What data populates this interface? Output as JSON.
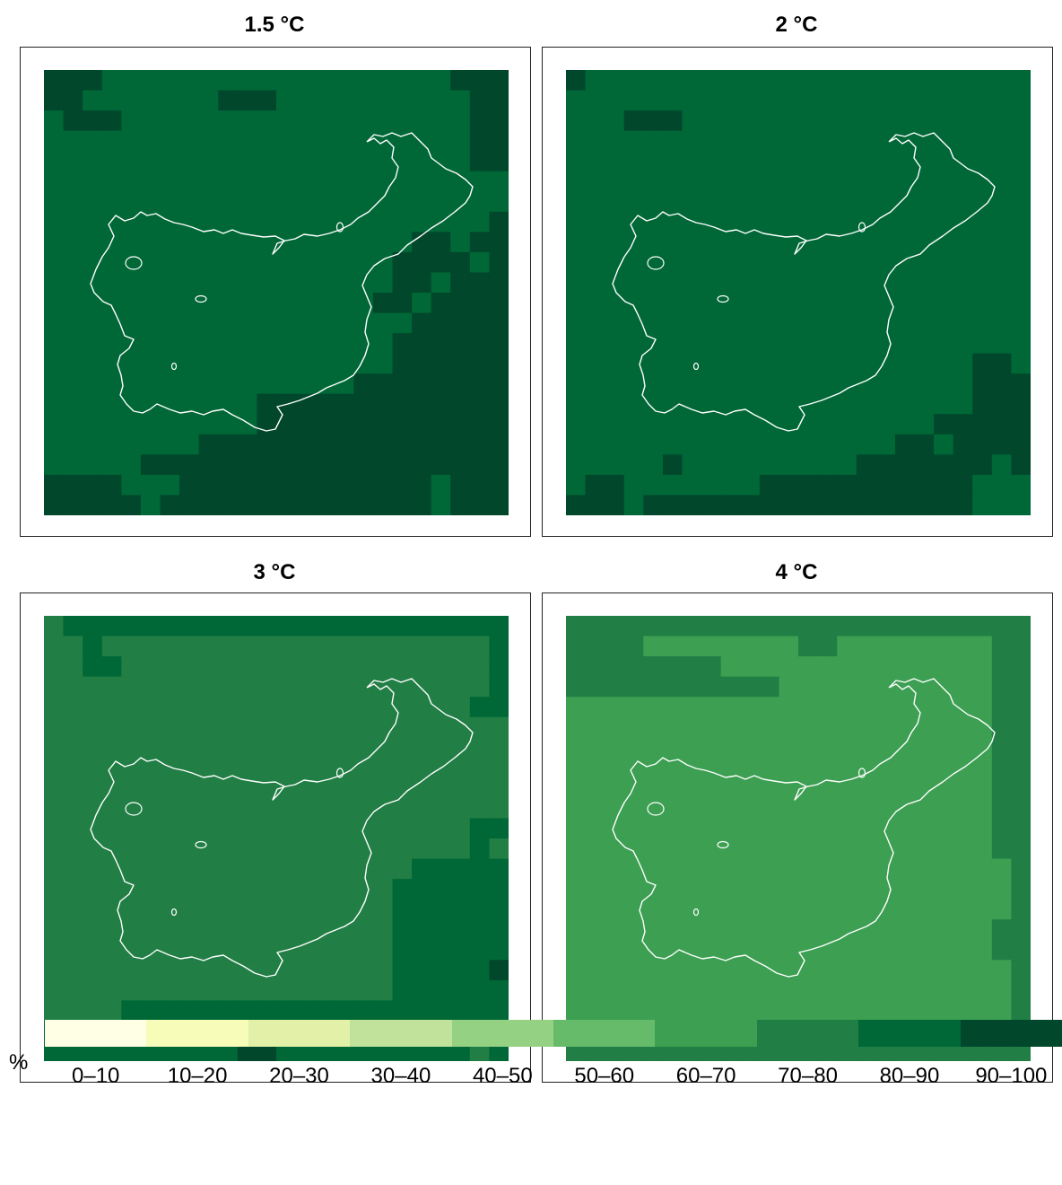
{
  "panels": [
    {
      "title": "1.5 °C",
      "grid": [
        "999888888888888888888999",
        "998888888999888888888899",
        "899988888888888888888899",
        "888888888888888888888899",
        "888888888888888888888899",
        "888888888888888888888888",
        "888888888888888888888888",
        "888888888888888888888889",
        "888888888888888888899899",
        "888888888888888888999989",
        "888888888888888888998999",
        "888888888888888889989999",
        "888888888888888888899999",
        "888888888888888888999999",
        "888888888888888888999999",
        "888888888888888899999999",
        "888888888889999999999999",
        "888888888889999999999999",
        "888888889999999999999999",
        "888889999999999999999999",
        "999988899999999999998999",
        "999998999999999999998999"
      ]
    },
    {
      "title": "2 °C",
      "grid": [
        "988888888888888888888888",
        "888888888888888888888888",
        "888999888888888888888888",
        "888888888888888888888888",
        "888888888888888888888888",
        "888888888888888888888888",
        "888888888888888888888888",
        "888888888888888888888888",
        "888888888888888888888888",
        "888888888888888888888888",
        "888888888888888888888888",
        "888888888888888888888888",
        "888888888888888888888888",
        "888888888888888888888888",
        "888888888888888888888998",
        "888888888888888888888999",
        "888888888888888888888999",
        "888888888888888888899999",
        "888888888888888889989999",
        "888889888888888999999989",
        "899888888899999999999888",
        "999899999999999999999888"
      ]
    },
    {
      "title": "3 °C",
      "grid": [
        "788888888888888888888888",
        "778777777777777777777778",
        "778877777777777777777778",
        "777777777777777777777778",
        "777777777777777777777788",
        "777777777777777777777777",
        "777777777777777777777777",
        "777777777777777777777777",
        "777777777777777777777777",
        "777777777777777777777777",
        "777777777777777777777788",
        "777777777777777777777787",
        "777777777777777777788888",
        "777777777777777777888888",
        "777777777777777777888888",
        "777777777777777777888888",
        "777777777777777777888888",
        "777777777777777777888889",
        "777777777777777777888888",
        "777788888888888888888888",
        "888888888888888888888878",
        "888888888899888888888878"
      ]
    },
    {
      "title": "4 °C",
      "grid": [
        "777777777777777777777777",
        "777766666666776666666677",
        "777777776666666666666677",
        "777777777776666666666677",
        "666666666666666666666677",
        "666666666666666666666677",
        "666666666666666666666677",
        "666666666666666666666677",
        "666666666666666666666677",
        "666666666666666666666677",
        "666666666666666666666677",
        "666666666666666666666677",
        "666666666666666666666667",
        "666666666666666666666667",
        "666666666666666666666667",
        "666666666666666666666677",
        "666666666666666666666677",
        "666666666666666666666667",
        "666666666666666666666667",
        "666666666666666666666667",
        "777777777777777777777777",
        "777777777777777777777777"
      ]
    }
  ],
  "legend": {
    "unit": "%",
    "bins": [
      {
        "label": "0–10",
        "color": "#ffffe5"
      },
      {
        "label": "10–20",
        "color": "#f7fcb9"
      },
      {
        "label": "20–30",
        "color": "#e2f0a8"
      },
      {
        "label": "30–40",
        "color": "#c0e29a"
      },
      {
        "label": "40–50",
        "color": "#95d183"
      },
      {
        "label": "50–60",
        "color": "#66bb6a"
      },
      {
        "label": "60–70",
        "color": "#3c9f52"
      },
      {
        "label": "70–80",
        "color": "#217e44"
      },
      {
        "label": "80–90",
        "color": "#006837"
      },
      {
        "label": "90–100",
        "color": "#00472b"
      }
    ]
  },
  "outline_color": "#ffffff",
  "outline_shape": "lake-shoreline"
}
